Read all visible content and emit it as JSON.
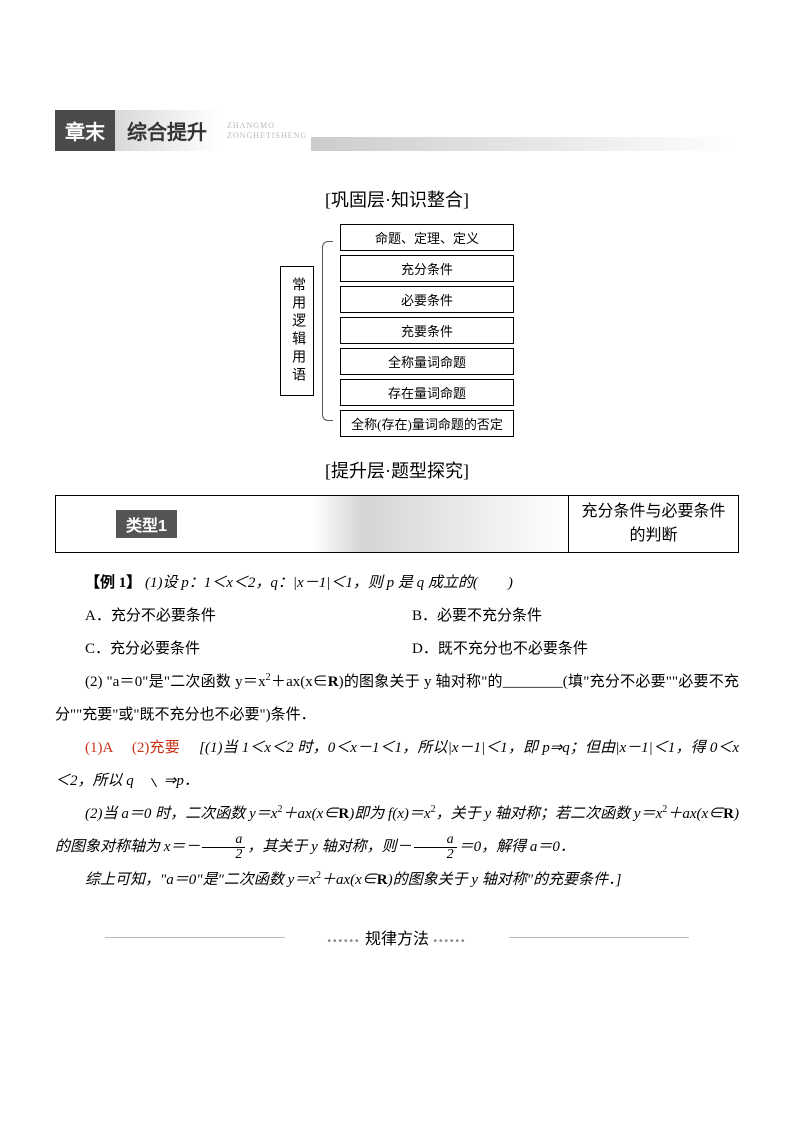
{
  "banner": {
    "dark": "章末",
    "light": "综合提升",
    "pinyin1": "ZHANGMO",
    "pinyin2": "ZONGHETISHENG"
  },
  "section1_title": "[巩固层·知识整合]",
  "section2_title": "[提升层·题型探究]",
  "concept_map": {
    "root": "常用逻辑用语",
    "items": [
      "命题、定理、定义",
      "充分条件",
      "必要条件",
      "充要条件",
      "全称量词命题",
      "存在量词命题",
      "全称(存在)量词命题的否定"
    ]
  },
  "type_bar": {
    "label": "类型1",
    "right": "充分条件与必要条件的判断"
  },
  "example": {
    "header": "【例 1】",
    "q1": "(1)设 p：1＜x＜2，q：|x－1|＜1，则 p 是 q 成立的(　　)",
    "options": {
      "A": "A．充分不必要条件",
      "B": "B．必要不充分条件",
      "C": "C．充分必要条件",
      "D": "D．既不充分也不必要条件"
    },
    "q2_pre": "(2) \"a＝0\"是\"二次函数 y＝x",
    "q2_mid": "＋ax(x∈",
    "q2_post": ")的图象关于 y 轴对称\"的________(填\"充分不必要\"\"必要不充分\"\"充要\"或\"既不充分也不必要\")条件．"
  },
  "answer": {
    "ans1": "(1)A",
    "ans2": "(2)充要",
    "expl1_pre": "[(1)当 1＜x＜2 时，0＜x－1＜1，所以|x－1|＜1，即 p⇒q；但由|x－1|＜1，得 0＜x＜2，所以 q",
    "expl1_post": "p．",
    "expl2_a": "(2)当 a＝0 时，二次函数 y＝x",
    "expl2_b": "＋ax(x∈",
    "expl2_c": ")即为 f(x)＝x",
    "expl2_d": "，关于 y 轴对称；若二次函数 y＝x",
    "expl2_e": "＋ax(x∈",
    "expl2_f": ")的图象对称轴为 x＝－",
    "expl2_g": "，其关于 y 轴对称，则－",
    "expl2_h": "＝0，解得 a＝0．",
    "expl3_a": "综上可知，\"a＝0\"是\"二次函数 y＝x",
    "expl3_b": "＋ax(x∈",
    "expl3_c": ")的图象关于 y 轴对称\"的充要条件．]"
  },
  "guilv": "规律方法",
  "R": "R",
  "frac": {
    "num": "a",
    "den": "2"
  }
}
